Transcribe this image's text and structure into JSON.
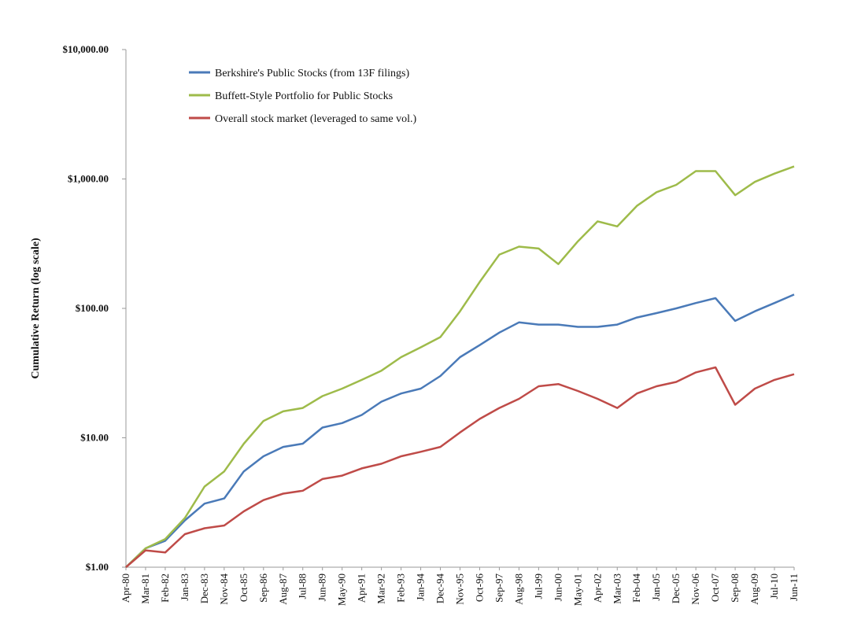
{
  "chart_data": {
    "type": "line",
    "title": "",
    "xlabel": "",
    "ylabel": "Cumulative Return  (log scale)",
    "yscale": "log",
    "ylim": [
      1,
      10000
    ],
    "grid": false,
    "legend_position": "top-left",
    "y_ticks": [
      1,
      10,
      100,
      1000,
      10000
    ],
    "y_tick_labels": [
      "$1.00",
      "$10.00",
      "$100.00",
      "$1,000.00",
      "$10,000.00"
    ],
    "x_tick_labels": [
      "Apr-80",
      "Mar-81",
      "Feb-82",
      "Jan-83",
      "Dec-83",
      "Nov-84",
      "Oct-85",
      "Sep-86",
      "Aug-87",
      "Jul-88",
      "Jun-89",
      "May-90",
      "Apr-91",
      "Mar-92",
      "Feb-93",
      "Jan-94",
      "Dec-94",
      "Nov-95",
      "Oct-96",
      "Sep-97",
      "Aug-98",
      "Jul-99",
      "Jun-00",
      "May-01",
      "Apr-02",
      "Mar-03",
      "Feb-04",
      "Jan-05",
      "Dec-05",
      "Nov-06",
      "Oct-07",
      "Sep-08",
      "Aug-09",
      "Jul-10",
      "Jun-11"
    ],
    "x": [
      "Apr-80",
      "Mar-81",
      "Feb-82",
      "Jan-83",
      "Dec-83",
      "Nov-84",
      "Oct-85",
      "Sep-86",
      "Aug-87",
      "Jul-88",
      "Jun-89",
      "May-90",
      "Apr-91",
      "Mar-92",
      "Feb-93",
      "Jan-94",
      "Dec-94",
      "Nov-95",
      "Oct-96",
      "Sep-97",
      "Aug-98",
      "Jul-99",
      "Jun-00",
      "May-01",
      "Apr-02",
      "Mar-03",
      "Feb-04",
      "Jan-05",
      "Dec-05",
      "Nov-06",
      "Oct-07",
      "Sep-08",
      "Aug-09",
      "Jul-10",
      "Jun-11"
    ],
    "series": [
      {
        "name": "Berkshire's Public Stocks (from 13F filings)",
        "color": "#4a7ab8",
        "values": [
          1.0,
          1.4,
          1.6,
          2.3,
          3.1,
          3.4,
          5.5,
          7.2,
          8.5,
          9.0,
          12,
          13,
          15,
          19,
          22,
          24,
          30,
          42,
          52,
          65,
          78,
          75,
          75,
          72,
          72,
          75,
          85,
          92,
          100,
          110,
          120,
          80,
          95,
          110,
          128
        ]
      },
      {
        "name": "Buffett-Style Portfolio for Public Stocks",
        "color": "#9ebb4a",
        "values": [
          1.0,
          1.4,
          1.65,
          2.4,
          4.2,
          5.5,
          9,
          13.5,
          16,
          17,
          21,
          24,
          28,
          33,
          42,
          50,
          60,
          95,
          160,
          260,
          300,
          290,
          220,
          330,
          470,
          430,
          620,
          790,
          900,
          1150,
          1150,
          750,
          950,
          1100,
          1250
        ]
      },
      {
        "name": "Overall stock market (leveraged to same vol.)",
        "color": "#bf4b48",
        "values": [
          1.0,
          1.35,
          1.3,
          1.8,
          2.0,
          2.1,
          2.7,
          3.3,
          3.7,
          3.9,
          4.8,
          5.1,
          5.8,
          6.3,
          7.2,
          7.8,
          8.5,
          11,
          14,
          17,
          20,
          25,
          26,
          23,
          20,
          17,
          22,
          25,
          27,
          32,
          35,
          18,
          24,
          28,
          31
        ]
      }
    ]
  }
}
